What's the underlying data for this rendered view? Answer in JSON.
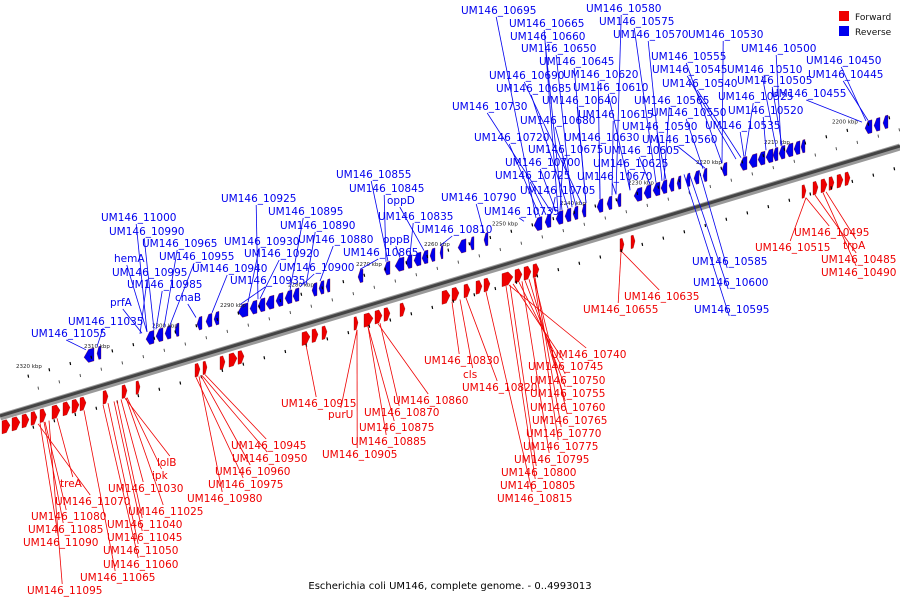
{
  "caption": "Escherichia coli UM146, complete genome. - 0..4993013",
  "legend": [
    {
      "label": "Forward",
      "color": "#ee0000"
    },
    {
      "label": "Reverse",
      "color": "#0000ee"
    }
  ],
  "colors": {
    "forward": "#ee0000",
    "reverse": "#0000ee",
    "backbone": "#777777"
  },
  "scale_ticks": [
    "2320 kbp",
    "2310 kbp",
    "2300 kbp",
    "2290 kbp",
    "2280 kbp",
    "2270 kbp",
    "2260 kbp",
    "2250 kbp",
    "2240 kbp",
    "2230 kbp",
    "2220 kbp",
    "2210 kbp",
    "2200 kbp"
  ],
  "reverse_labels": [
    "UM146_10695",
    "UM146_10580",
    "UM146_10665",
    "UM146_10575",
    "UM146_10660",
    "UM146_10570",
    "UM146_10530",
    "UM146_10650",
    "UM146_10500",
    "UM146_10645",
    "UM146_10555",
    "UM146_10450",
    "UM146_10620",
    "UM146_10545",
    "UM146_10510",
    "UM146_10690",
    "UM146_10445",
    "UM146_10685",
    "UM146_10610",
    "UM146_10540",
    "UM146_10505",
    "UM146_10640",
    "UM146_10565",
    "UM146_10525",
    "UM146_10455",
    "UM146_10730",
    "UM146_10615",
    "UM146_10550",
    "UM146_10520",
    "UM146_10680",
    "UM146_10590",
    "UM146_10535",
    "UM146_10720",
    "UM146_10630",
    "UM146_10560",
    "UM146_10675",
    "UM146_10605",
    "UM146_10700",
    "UM146_10625",
    "UM146_10725",
    "UM146_10670",
    "UM146_10855",
    "UM146_10705",
    "UM146_10845",
    "UM146_10790",
    "UM146_10925",
    "oppD",
    "UM146_10735",
    "UM146_10895",
    "UM146_10835",
    "UM146_11000",
    "UM146_10890",
    "UM146_10810",
    "UM146_10990",
    "UM146_10930",
    "UM146_10880",
    "oppB",
    "UM146_10965",
    "UM146_10920",
    "UM146_10865",
    "hemA",
    "UM146_10955",
    "UM146_10900",
    "UM146_10995",
    "UM146_10940",
    "UM146_10985",
    "chaB",
    "prfA",
    "UM146_10935",
    "UM146_11035",
    "UM146_11055",
    "UM146_10585",
    "UM146_10600",
    "UM146_10595"
  ],
  "forward_labels": [
    "UM146_10495",
    "trpA",
    "UM146_10515",
    "UM146_10485",
    "UM146_10490",
    "UM146_10635",
    "UM146_10655",
    "UM146_10740",
    "UM146_10830",
    "UM146_10745",
    "cls",
    "UM146_10750",
    "UM146_10820",
    "UM146_10755",
    "UM146_10860",
    "UM146_10915",
    "UM146_10760",
    "UM146_10870",
    "purU",
    "UM146_10765",
    "UM146_10875",
    "UM146_10770",
    "UM146_10885",
    "UM146_10945",
    "UM146_10775",
    "UM146_10905",
    "lolB",
    "UM146_10950",
    "UM146_10795",
    "ipk",
    "UM146_10960",
    "UM146_10800",
    "UM146_11030",
    "UM146_10975",
    "treA",
    "UM146_10805",
    "UM146_11070",
    "UM146_10980",
    "UM146_10815",
    "UM146_11025",
    "UM146_11080",
    "UM146_11040",
    "UM146_11085",
    "UM146_11045",
    "UM146_11090",
    "UM146_11050",
    "UM146_11060",
    "UM146_11065",
    "UM146_11095"
  ]
}
